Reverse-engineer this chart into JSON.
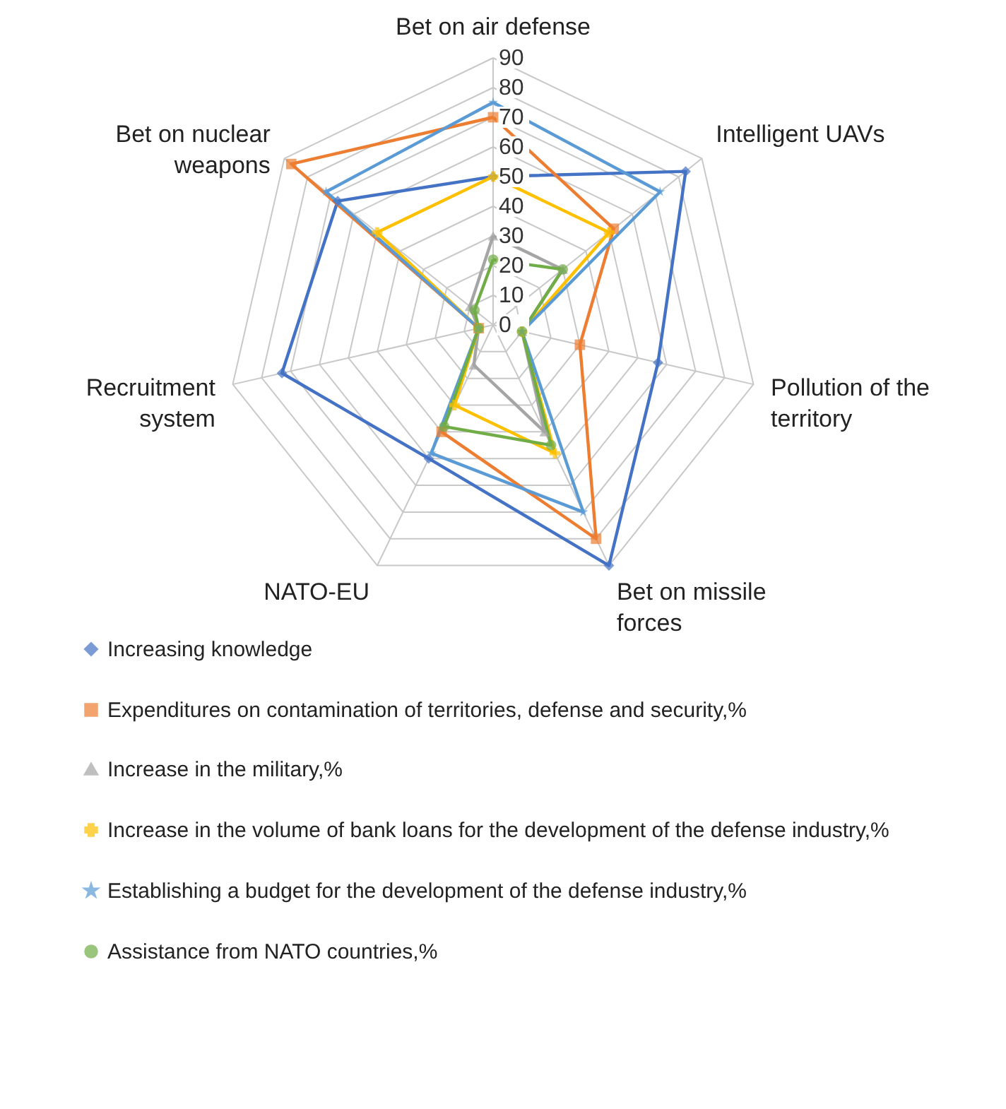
{
  "chart_data": {
    "type": "radar",
    "categories": [
      "Bet on air defense",
      "Intelligent UAVs",
      "Pollution of the territory",
      "Bet on missile forces",
      "NATO-EU",
      "Recruitment system",
      "Bet on nuclear weapons"
    ],
    "ylim": [
      0,
      90
    ],
    "yticks": [
      0,
      10,
      20,
      30,
      40,
      50,
      60,
      70,
      80,
      90
    ],
    "grid": true,
    "legend": "bottom",
    "series": [
      {
        "name": "Increasing knowledge",
        "color": "#4472c4",
        "marker": "diamond",
        "values": [
          50,
          83,
          57,
          90,
          50,
          73,
          67
        ]
      },
      {
        "name": "Expenditures on contamination of territories, defense and security,%",
        "color": "#ed7d31",
        "marker": "square",
        "values": [
          70,
          52,
          30,
          80,
          40,
          5,
          87
        ]
      },
      {
        "name": "Increase in the military,%",
        "color": "#a5a5a5",
        "marker": "triangle",
        "values": [
          30,
          30,
          10,
          40,
          15,
          5,
          10
        ]
      },
      {
        "name": "Increase in the volume of bank loans for the development of the defense industry,%",
        "color": "#ffc000",
        "marker": "cross",
        "values": [
          50,
          50,
          10,
          48,
          30,
          5,
          50
        ]
      },
      {
        "name": "Establishing a budget for the development of the defense industry,%",
        "color": "#5b9bd5",
        "marker": "star",
        "values": [
          75,
          72,
          10,
          70,
          48,
          5,
          72
        ]
      },
      {
        "name": "Assistance from NATO countries,%",
        "color": "#70ad47",
        "marker": "circle",
        "values": [
          22,
          30,
          10,
          45,
          38,
          5,
          8
        ]
      }
    ]
  }
}
